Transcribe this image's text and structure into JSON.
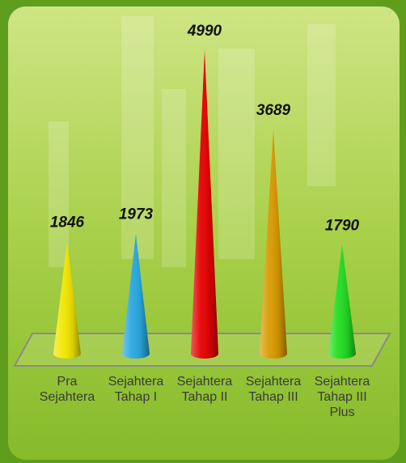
{
  "chart_data": {
    "type": "cone",
    "categories": [
      "Pra Sejahtera",
      "Sejahtera Tahap I",
      "Sejahtera Tahap II",
      "Sejahtera Tahap III",
      "Sejahtera Tahap III Plus"
    ],
    "values": [
      1846,
      1973,
      4990,
      3689,
      1790
    ],
    "colors": [
      "#f2e600",
      "#29a8e0",
      "#e60000",
      "#d99a00",
      "#22dd22"
    ]
  }
}
